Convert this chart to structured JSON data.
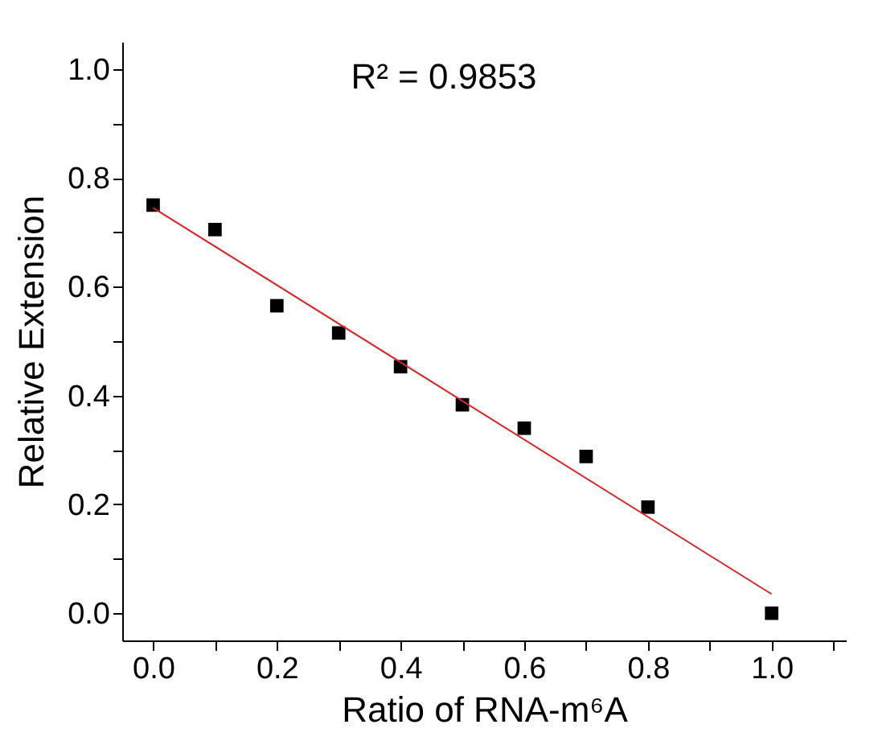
{
  "chart_data": {
    "type": "scatter",
    "xlabel": "Ratio of RNA-m⁶A",
    "ylabel": "Relative Extension",
    "annotations": [
      "R² = 0.9853"
    ],
    "xlim": [
      -0.05,
      1.12
    ],
    "ylim": [
      -0.05,
      1.05
    ],
    "xticks": [
      {
        "value": 0,
        "label": "0.0"
      },
      {
        "value": 0.1,
        "label": null
      },
      0.2,
      {
        "value": 0.3,
        "label": null
      },
      0.4,
      {
        "value": 0.5,
        "label": null
      },
      0.6,
      {
        "value": 0.7,
        "label": null
      },
      0.8,
      {
        "value": 0.9,
        "label": null
      },
      {
        "value": 1,
        "label": "1.0"
      },
      {
        "value": 1.1,
        "label": null
      }
    ],
    "yticks": [
      {
        "value": 0,
        "label": "0.0"
      },
      {
        "value": 0.1,
        "label": null
      },
      0.2,
      {
        "value": 0.3,
        "label": null
      },
      0.4,
      {
        "value": 0.5,
        "label": null
      },
      0.6,
      {
        "value": 0.7,
        "label": null
      },
      0.8,
      {
        "value": 0.9,
        "label": null
      },
      {
        "value": 1,
        "label": "1.0"
      }
    ],
    "grid": false,
    "legend": false,
    "series": [
      {
        "color": "#000000",
        "marker": "square",
        "x": [
          0,
          0.1,
          0.2,
          0.3,
          0.4,
          0.5,
          0.6,
          0.7,
          0.8,
          1.0
        ],
        "values": [
          0.75,
          0.705,
          0.565,
          0.515,
          0.453,
          0.383,
          0.34,
          0.288,
          0.195,
          0.0
        ]
      },
      {
        "type": "line",
        "marker": "none",
        "color": "#d62728",
        "x": [
          0,
          1.0
        ],
        "values": [
          0.745,
          0.035
        ]
      }
    ]
  }
}
